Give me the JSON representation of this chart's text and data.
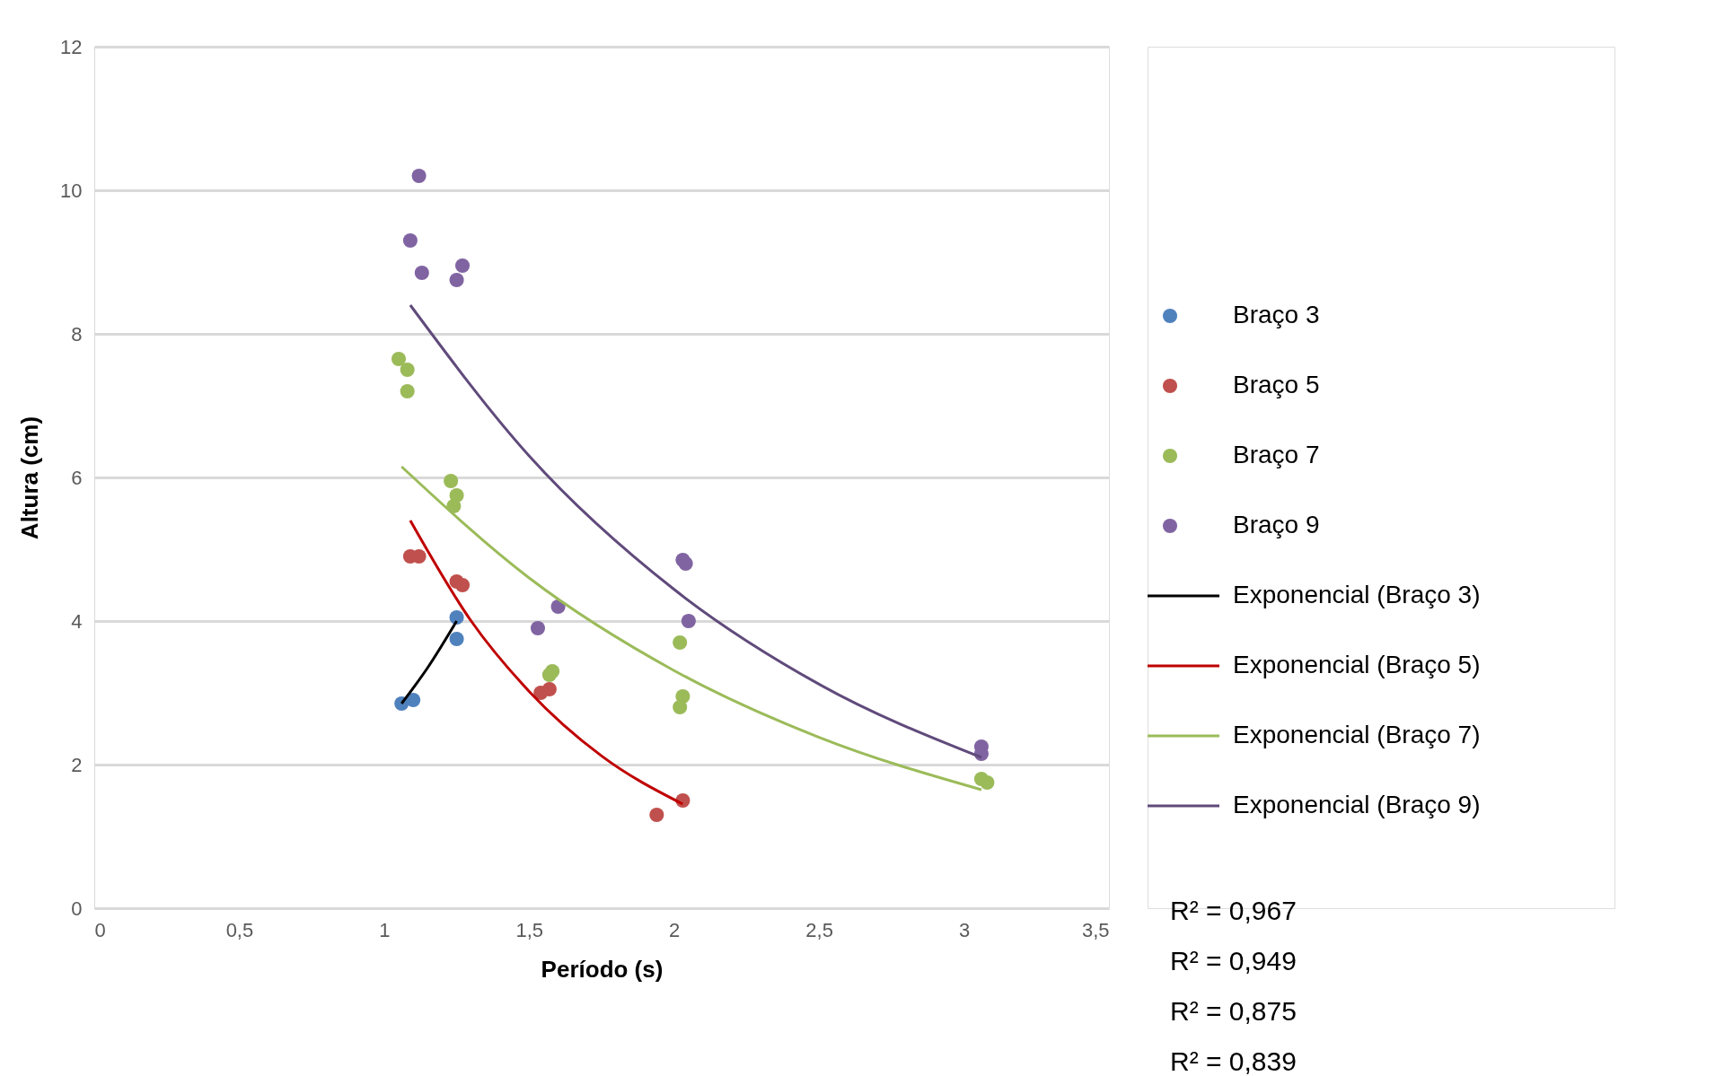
{
  "chart_data": {
    "type": "scatter",
    "xlabel": "Período (s)",
    "ylabel": "Altura (cm)",
    "xlim": [
      0,
      3.5
    ],
    "xticks": [
      0,
      {
        "value": 0.5,
        "label": "0,5"
      },
      1,
      {
        "value": 1.5,
        "label": "1,5"
      },
      2,
      {
        "value": 2.5,
        "label": "2,5"
      },
      3,
      {
        "value": 3.5,
        "label": "3,5"
      }
    ],
    "ylim": [
      0,
      12
    ],
    "yticks": [
      0,
      2,
      4,
      6,
      8,
      10,
      12
    ],
    "grid": "y",
    "legend": "right",
    "marker": "circle",
    "series": [
      {
        "name": "Braço 3",
        "color": "#4f81bd",
        "x": [
          1.06,
          1.1,
          1.25,
          1.25
        ],
        "values": [
          2.85,
          2.9,
          3.75,
          4.05
        ]
      },
      {
        "name": "Braço 5",
        "color": "#c0504d",
        "x": [
          1.09,
          1.12,
          1.25,
          1.27,
          1.54,
          1.57,
          1.94,
          2.03
        ],
        "values": [
          4.9,
          4.9,
          4.55,
          4.5,
          3.0,
          3.05,
          1.3,
          1.5
        ]
      },
      {
        "name": "Braço 7",
        "color": "#9bbb59",
        "x": [
          1.05,
          1.08,
          1.08,
          1.23,
          1.25,
          1.24,
          1.57,
          1.58,
          2.02,
          2.03,
          2.02,
          3.06,
          3.08
        ],
        "values": [
          7.65,
          7.5,
          7.2,
          5.95,
          5.75,
          5.6,
          3.25,
          3.3,
          3.7,
          2.95,
          2.8,
          1.8,
          1.75
        ]
      },
      {
        "name": "Braço 9",
        "color": "#8064a2",
        "x": [
          1.12,
          1.09,
          1.13,
          1.25,
          1.27,
          1.53,
          1.6,
          2.03,
          2.04,
          2.05,
          3.06,
          3.06
        ],
        "values": [
          10.2,
          9.3,
          8.85,
          8.75,
          8.95,
          3.9,
          4.2,
          4.85,
          4.8,
          4.0,
          2.15,
          2.25
        ]
      },
      {
        "name": "Exponencial (Braço 3)",
        "type": "line",
        "marker": "none",
        "color": "#000000",
        "x": [
          1.06,
          1.15,
          1.25
        ],
        "values": [
          2.85,
          3.35,
          4.0
        ]
      },
      {
        "name": "Exponencial (Braço 5)",
        "type": "line",
        "marker": "none",
        "color": "#c00000",
        "x": [
          1.09,
          1.3,
          1.5,
          1.75,
          2.03
        ],
        "values": [
          5.4,
          4.0,
          3.02,
          2.12,
          1.45
        ]
      },
      {
        "name": "Exponencial (Braço 7)",
        "type": "line",
        "marker": "none",
        "color": "#9bbb59",
        "x": [
          1.06,
          1.5,
          2.0,
          2.5,
          3.06
        ],
        "values": [
          6.15,
          4.6,
          3.31,
          2.38,
          1.65
        ]
      },
      {
        "name": "Exponencial (Braço 9)",
        "type": "line",
        "marker": "none",
        "color": "#604a7b",
        "x": [
          1.09,
          1.5,
          2.0,
          2.5,
          3.06
        ],
        "values": [
          8.4,
          6.3,
          4.44,
          3.12,
          2.1
        ]
      }
    ],
    "annotations": [
      "R² = 0,967",
      "R² = 0,949",
      "R² = 0,875",
      "R² = 0,839"
    ]
  }
}
